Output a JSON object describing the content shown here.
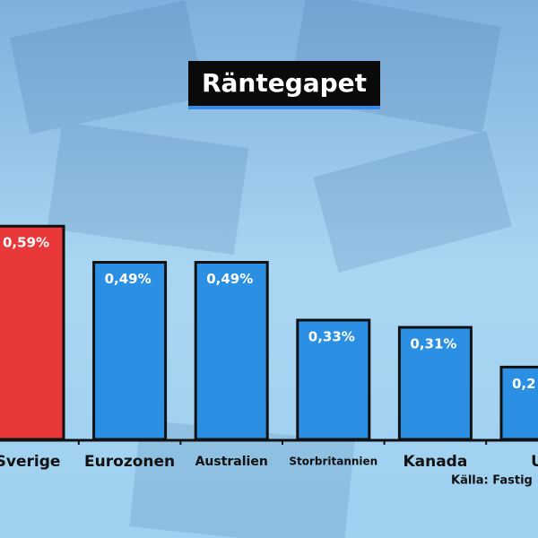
{
  "chart_data": {
    "type": "bar",
    "title": "Räntegapet",
    "categories": [
      "Sverige",
      "Eurozonen",
      "Australien",
      "Storbritannien",
      "Kanada",
      "U"
    ],
    "values": [
      0.59,
      0.49,
      0.49,
      0.33,
      0.31,
      0.2
    ],
    "value_labels": [
      "0,59%",
      "0,49%",
      "0,49%",
      "0,33%",
      "0,31%",
      "0,2"
    ],
    "colors": [
      "#e8383a",
      "#2b8fe3",
      "#2b8fe3",
      "#2b8fe3",
      "#2b8fe3",
      "#2b8fe3"
    ],
    "source": "Källa: Fastig"
  }
}
